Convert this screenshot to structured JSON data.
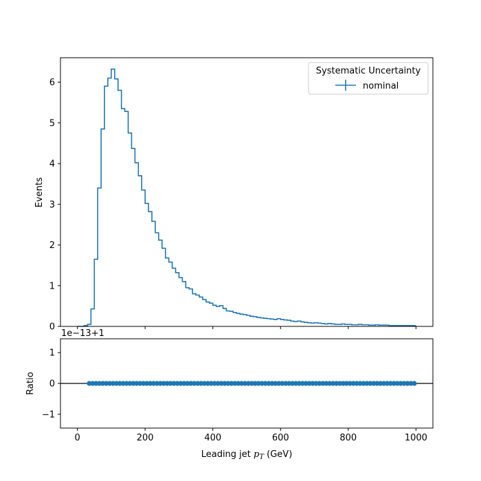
{
  "chart_data": [
    {
      "type": "line",
      "panel": "main",
      "ylabel": "Events",
      "xlim": [
        -50,
        1050
      ],
      "ylim": [
        0,
        6.6
      ],
      "yticks": [
        0,
        1,
        2,
        3,
        4,
        5,
        6
      ],
      "ytick_labels": [
        "0",
        "1",
        "2",
        "3",
        "4",
        "5",
        "6"
      ],
      "xticks": [
        0,
        200,
        400,
        600,
        800,
        1000
      ],
      "legend": {
        "placement": "top-right",
        "title": "Systematic Uncertainty",
        "entries": [
          "nominal"
        ]
      },
      "series": [
        {
          "name": "nominal",
          "color": "#1f77b4",
          "style": "step",
          "bin_edges": [
            0,
            10,
            20,
            30,
            40,
            50,
            60,
            70,
            80,
            90,
            100,
            110,
            120,
            130,
            140,
            150,
            160,
            170,
            180,
            190,
            200,
            210,
            220,
            230,
            240,
            250,
            260,
            270,
            280,
            290,
            300,
            310,
            320,
            330,
            340,
            350,
            360,
            370,
            380,
            390,
            400,
            410,
            420,
            430,
            440,
            450,
            460,
            470,
            480,
            490,
            500,
            510,
            520,
            530,
            540,
            550,
            560,
            570,
            580,
            590,
            600,
            610,
            620,
            630,
            640,
            650,
            660,
            670,
            680,
            690,
            700,
            710,
            720,
            730,
            740,
            750,
            760,
            770,
            780,
            790,
            800,
            810,
            820,
            830,
            840,
            850,
            860,
            870,
            880,
            890,
            900,
            910,
            920,
            930,
            940,
            950,
            960,
            970,
            980,
            990,
            1000
          ],
          "values": [
            0.0,
            0.0,
            0.02,
            0.05,
            0.43,
            1.65,
            3.4,
            4.85,
            5.9,
            6.1,
            6.32,
            6.08,
            5.8,
            5.35,
            5.28,
            4.75,
            4.37,
            4.02,
            3.7,
            3.35,
            3.02,
            2.82,
            2.58,
            2.3,
            2.12,
            1.92,
            1.68,
            1.58,
            1.43,
            1.32,
            1.2,
            1.1,
            0.95,
            0.92,
            0.8,
            0.77,
            0.72,
            0.66,
            0.6,
            0.57,
            0.52,
            0.49,
            0.51,
            0.44,
            0.38,
            0.37,
            0.34,
            0.32,
            0.3,
            0.29,
            0.27,
            0.25,
            0.24,
            0.22,
            0.21,
            0.2,
            0.19,
            0.18,
            0.17,
            0.19,
            0.17,
            0.16,
            0.15,
            0.13,
            0.12,
            0.13,
            0.11,
            0.1,
            0.09,
            0.08,
            0.09,
            0.08,
            0.07,
            0.06,
            0.07,
            0.06,
            0.05,
            0.05,
            0.06,
            0.05,
            0.05,
            0.04,
            0.04,
            0.05,
            0.04,
            0.04,
            0.03,
            0.03,
            0.04,
            0.03,
            0.03,
            0.03,
            0.02,
            0.02,
            0.02,
            0.02,
            0.02,
            0.02,
            0.02,
            0.02
          ]
        }
      ]
    },
    {
      "type": "scatter",
      "panel": "ratio",
      "ylabel": "Ratio",
      "xlabel": "Leading jet  p_T (GeV)",
      "xlabel_main": "Leading jet  ",
      "xlabel_var": "p",
      "xlabel_sub": "T",
      "xlabel_unit": " (GeV)",
      "offset_text": "1e−13+1",
      "xlim": [
        -50,
        1050
      ],
      "ylim": [
        -1.45,
        1.45
      ],
      "yticks": [
        -1,
        0,
        1
      ],
      "ytick_labels": [
        "−1",
        "0",
        "1"
      ],
      "xticks": [
        0,
        200,
        400,
        600,
        800,
        1000
      ],
      "xtick_labels": [
        "0",
        "200",
        "400",
        "600",
        "800",
        "1000"
      ],
      "reference_line": 0,
      "series": [
        {
          "name": "nominal",
          "color": "#1f77b4",
          "x_start": 35,
          "x_end": 995,
          "x_step": 10,
          "y": 0
        }
      ]
    }
  ]
}
